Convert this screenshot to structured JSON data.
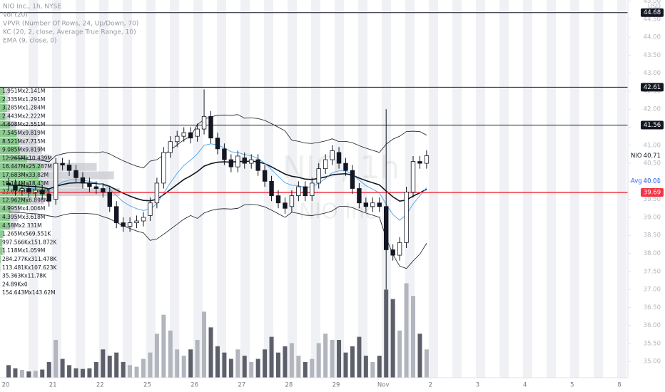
{
  "chart_data": {
    "type": "candlestick",
    "title": "NIO Inc., 1h, NYSE",
    "indicators": [
      "Vol (20)",
      "VPVR (Number Of Rows, 24, Up/Down, 70)",
      "KC (20, 2, close, Average True Range, 10)",
      "EMA (9, close, 0)"
    ],
    "watermark": [
      "NIO, 1h",
      "NIO Inc."
    ],
    "currency": "USD",
    "categories": [
      "20",
      null,
      null,
      null,
      null,
      null,
      null,
      "21",
      null,
      null,
      null,
      null,
      null,
      null,
      "22",
      null,
      null,
      null,
      null,
      null,
      null,
      "25",
      null,
      null,
      null,
      null,
      null,
      null,
      "26",
      null,
      null,
      null,
      null,
      null,
      null,
      "27",
      null,
      null,
      null,
      null,
      null,
      null,
      "28",
      null,
      null,
      null,
      null,
      null,
      null,
      "29",
      null,
      null,
      null,
      null,
      null,
      null,
      "Nov",
      null,
      null,
      null,
      null,
      null,
      null
    ],
    "future_categories": [
      "2",
      "3",
      "4",
      "5",
      "8"
    ],
    "open": [
      39.95,
      39.9,
      39.75,
      39.8,
      39.7,
      39.75,
      39.65,
      39.5,
      40.5,
      40.45,
      40.3,
      40.1,
      39.95,
      39.85,
      39.8,
      39.7,
      39.3,
      38.85,
      38.75,
      38.85,
      38.9,
      39.05,
      39.4,
      39.95,
      40.8,
      41.1,
      41.25,
      41.35,
      41.25,
      41.45,
      41.8,
      41.2,
      40.9,
      40.6,
      40.4,
      40.65,
      40.5,
      40.6,
      40.3,
      40.0,
      39.6,
      39.4,
      39.3,
      39.6,
      39.85,
      39.6,
      39.95,
      40.35,
      40.6,
      40.8,
      40.5,
      40.3,
      39.8,
      39.4,
      39.3,
      39.4,
      39.3,
      38.1,
      37.95,
      38.3,
      39.7,
      40.55,
      40.5
    ],
    "high": [
      40.1,
      40.05,
      39.95,
      39.95,
      39.9,
      39.9,
      39.8,
      40.65,
      40.65,
      40.6,
      40.45,
      40.25,
      40.1,
      40.0,
      39.95,
      39.85,
      39.45,
      39.0,
      39.0,
      39.05,
      39.15,
      39.55,
      40.1,
      40.95,
      41.25,
      41.4,
      41.5,
      41.5,
      41.6,
      42.55,
      41.95,
      41.35,
      41.05,
      40.75,
      40.85,
      40.8,
      40.75,
      40.75,
      40.45,
      40.15,
      39.75,
      39.55,
      39.75,
      40.0,
      40.0,
      40.1,
      40.5,
      40.75,
      41.0,
      40.95,
      40.65,
      40.45,
      39.95,
      39.55,
      39.55,
      39.55,
      42.0,
      38.25,
      38.45,
      39.85,
      40.7,
      40.7,
      40.86
    ],
    "low": [
      39.75,
      39.6,
      39.6,
      39.55,
      39.55,
      39.5,
      39.3,
      39.35,
      40.3,
      40.15,
      39.95,
      39.8,
      39.7,
      39.65,
      39.55,
      39.15,
      38.7,
      38.6,
      38.6,
      38.7,
      38.75,
      38.9,
      39.25,
      39.8,
      40.65,
      40.95,
      41.1,
      41.05,
      41.1,
      41.3,
      41.05,
      40.75,
      40.45,
      40.25,
      40.25,
      40.35,
      40.35,
      40.15,
      39.85,
      39.45,
      39.25,
      39.1,
      39.15,
      39.45,
      39.45,
      39.45,
      39.8,
      40.2,
      40.45,
      40.35,
      40.15,
      39.65,
      39.25,
      39.15,
      39.15,
      39.15,
      37.0,
      37.8,
      37.8,
      38.15,
      39.55,
      40.35,
      40.35
    ],
    "close": [
      39.9,
      39.75,
      39.8,
      39.7,
      39.75,
      39.65,
      39.45,
      40.5,
      40.45,
      40.3,
      40.1,
      39.95,
      39.85,
      39.8,
      39.7,
      39.3,
      38.85,
      38.75,
      38.85,
      38.9,
      39.0,
      39.4,
      39.95,
      40.8,
      41.1,
      41.25,
      41.35,
      41.2,
      41.45,
      41.8,
      41.2,
      40.9,
      40.6,
      40.4,
      40.7,
      40.5,
      40.6,
      40.3,
      40.0,
      39.6,
      39.4,
      39.25,
      39.6,
      39.85,
      39.6,
      39.95,
      40.35,
      40.6,
      40.85,
      40.5,
      40.3,
      39.8,
      39.4,
      39.3,
      39.4,
      39.3,
      38.1,
      37.95,
      38.3,
      39.7,
      40.55,
      40.5,
      40.71
    ],
    "volume": [
      400000,
      300000,
      250000,
      200000,
      220000,
      260000,
      500000,
      1200000,
      600000,
      400000,
      300000,
      280000,
      300000,
      500000,
      900000,
      700000,
      800000,
      500000,
      400000,
      350000,
      600000,
      800000,
      1400000,
      2000000,
      1500000,
      900000,
      700000,
      900000,
      1200000,
      2100000,
      1600000,
      1000000,
      800000,
      600000,
      900000,
      700000,
      500000,
      600000,
      900000,
      1300000,
      800000,
      1000000,
      1100000,
      700000,
      500000,
      600000,
      1100000,
      1400000,
      1200000,
      1200000,
      800000,
      1000000,
      1300000,
      700000,
      500000,
      700000,
      2800000,
      2500000,
      1500000,
      3000000,
      2600000,
      1400000,
      900000
    ],
    "overlays": [
      {
        "color": "#131722",
        "width": 1.6,
        "values": [
          39.9,
          39.89,
          39.88,
          39.86,
          39.85,
          39.83,
          39.79,
          39.86,
          39.91,
          39.95,
          39.96,
          39.96,
          39.95,
          39.94,
          39.92,
          39.86,
          39.76,
          39.67,
          39.59,
          39.52,
          39.47,
          39.46,
          39.5,
          39.63,
          39.77,
          39.91,
          40.05,
          40.15,
          40.27,
          40.42,
          40.49,
          40.53,
          40.54,
          40.53,
          40.55,
          40.55,
          40.56,
          40.54,
          40.49,
          40.4,
          40.3,
          40.2,
          40.14,
          40.11,
          40.06,
          40.05,
          40.08,
          40.12,
          40.18,
          40.2,
          40.21,
          40.17,
          40.09,
          40.02,
          39.96,
          39.9,
          39.73,
          39.57,
          39.45,
          39.48,
          39.59,
          39.68,
          39.78
        ]
      },
      {
        "color": "#131722",
        "width": 0.8,
        "values": [
          40.65,
          40.64,
          40.63,
          40.61,
          40.6,
          40.58,
          40.54,
          40.71,
          40.76,
          40.8,
          40.81,
          40.81,
          40.8,
          40.79,
          40.82,
          40.76,
          40.66,
          40.57,
          40.49,
          40.42,
          40.37,
          40.56,
          40.6,
          40.73,
          40.87,
          41.01,
          41.15,
          41.25,
          41.57,
          41.72,
          41.79,
          41.83,
          41.84,
          41.83,
          41.85,
          41.75,
          41.76,
          41.74,
          41.69,
          41.6,
          41.5,
          41.4,
          41.14,
          41.11,
          41.06,
          41.05,
          41.08,
          41.12,
          41.18,
          41.1,
          41.11,
          41.07,
          40.99,
          40.92,
          40.86,
          40.8,
          41.03,
          41.17,
          41.25,
          41.38,
          41.39,
          41.38,
          41.28
        ]
      },
      {
        "color": "#131722",
        "width": 0.8,
        "values": [
          39.15,
          39.14,
          39.13,
          39.11,
          39.1,
          39.08,
          39.04,
          39.01,
          39.06,
          39.1,
          39.11,
          39.11,
          39.1,
          39.09,
          39.02,
          38.96,
          38.86,
          38.77,
          38.69,
          38.62,
          38.57,
          38.36,
          38.4,
          38.53,
          38.67,
          38.81,
          38.95,
          39.05,
          38.97,
          39.12,
          39.19,
          39.23,
          39.24,
          39.23,
          39.25,
          39.35,
          39.36,
          39.34,
          39.29,
          39.2,
          39.1,
          39.0,
          39.14,
          39.11,
          39.06,
          39.05,
          39.08,
          39.12,
          39.18,
          39.3,
          39.31,
          39.27,
          39.19,
          39.12,
          39.06,
          39.0,
          38.43,
          37.97,
          37.65,
          37.58,
          37.79,
          37.98,
          38.28
        ]
      },
      {
        "color": "#42a5f5",
        "width": 0.9,
        "values": [
          39.85,
          39.83,
          39.82,
          39.8,
          39.79,
          39.76,
          39.7,
          39.86,
          39.98,
          40.04,
          40.05,
          40.03,
          40.0,
          39.96,
          39.91,
          39.79,
          39.6,
          39.43,
          39.32,
          39.24,
          39.19,
          39.23,
          39.38,
          39.67,
          39.96,
          40.22,
          40.44,
          40.59,
          40.76,
          41.0,
          41.04,
          41.01,
          40.93,
          40.82,
          40.8,
          40.74,
          40.71,
          40.63,
          40.5,
          40.32,
          40.14,
          39.96,
          39.89,
          39.88,
          39.82,
          39.85,
          39.95,
          40.08,
          40.24,
          40.29,
          40.29,
          40.19,
          40.03,
          39.88,
          39.78,
          39.68,
          39.36,
          39.08,
          38.92,
          39.08,
          39.37,
          39.6,
          39.82
        ]
      }
    ],
    "vpvr": [
      {
        "up": 1951000,
        "down": 2141000,
        "label": "1.951Mx2.141M"
      },
      {
        "up": 2335000,
        "down": 1291000,
        "label": "2.335Mx1.291M"
      },
      {
        "up": 3285000,
        "down": 1284000,
        "label": "3.285Mx1.284M"
      },
      {
        "up": 2443000,
        "down": 2222000,
        "label": "2.443Mx2.222M"
      },
      {
        "up": 4608000,
        "down": 2551000,
        "label": "4.608Mx2.551M"
      },
      {
        "up": 7545000,
        "down": 9819000,
        "label": "7.545Mx9.819M"
      },
      {
        "up": 8521000,
        "down": 7715000,
        "label": "8.521Mx7.715M"
      },
      {
        "up": 9085000,
        "down": 9819000,
        "label": "9.085Mx9.819M"
      },
      {
        "up": 12265000,
        "down": 10439000,
        "label": "12.265Mx10.439M"
      },
      {
        "up": 18447000,
        "down": 25287000,
        "label": "18.447Mx25.287M"
      },
      {
        "up": 17683000,
        "down": 33820000,
        "label": "17.683Mx33.82M"
      },
      {
        "up": 19104000,
        "down": 18430000,
        "label": "19.104Mx18.43M"
      },
      {
        "up": 22624000,
        "down": 31470000,
        "label": "22.624Mx31.47M"
      },
      {
        "up": 12962000,
        "down": 6898000,
        "label": "12.962Mx6.898M"
      },
      {
        "up": 4995000,
        "down": 4006000,
        "label": "4.995Mx4.006M"
      },
      {
        "up": 4395000,
        "down": 3618000,
        "label": "4.395Mx3.618M"
      },
      {
        "up": 4580000,
        "down": 2331000,
        "label": "4.58Mx2.331M"
      },
      {
        "up": 1265000,
        "down": 569551,
        "label": "1.265Mx569.551K"
      },
      {
        "up": 997566,
        "down": 151872,
        "label": "997.566Kx151.872K"
      },
      {
        "up": 1118000,
        "down": 1059000,
        "label": "1.118Mx1.059M"
      },
      {
        "up": 284277,
        "down": 311478,
        "label": "284.277Kx311.478K"
      },
      {
        "up": 113481,
        "down": 107623,
        "label": "113.481Kx107.623K"
      },
      {
        "up": 35363,
        "down": 11780,
        "label": "35.363Kx11.78K"
      },
      {
        "up": 24890,
        "down": 0,
        "label": "24.89Kx0"
      }
    ],
    "vpvr_total": {
      "up": 154643000,
      "down": 143620000,
      "label": "154.643Mx143.62M"
    },
    "levels": [
      44.68,
      42.61,
      41.56,
      39.69
    ],
    "level_colors": [
      "#131722",
      "#131722",
      "#131722",
      "#f23645"
    ],
    "last": {
      "label": "NIO",
      "value": 40.71
    },
    "avg": {
      "label": "Avg",
      "value": 40.01
    },
    "ylim": [
      34.55,
      45.03
    ],
    "yticks": [
      {
        "value": 35,
        "label": "35.00"
      },
      {
        "value": 35.5,
        "label": "35.50"
      },
      {
        "value": 36,
        "label": "36.00"
      },
      {
        "value": 36.5,
        "label": "36.50"
      },
      {
        "value": 37,
        "label": "37.00"
      },
      {
        "value": 37.5,
        "label": "37.50"
      },
      {
        "value": 38,
        "label": "38.00"
      },
      {
        "value": 38.5,
        "label": "38.50"
      },
      {
        "value": 39,
        "label": "39.00"
      },
      {
        "value": 39.5,
        "label": "39.50"
      },
      {
        "value": 40,
        "label": "40.00"
      },
      {
        "value": 40.5,
        "label": "40.50"
      },
      {
        "value": 41,
        "label": "41.00"
      },
      {
        "value": 41.5,
        "label": "41.50"
      },
      {
        "value": 42,
        "label": "42.00"
      },
      {
        "value": 42.5,
        "label": "42.50"
      },
      {
        "value": 43,
        "label": "43.00"
      },
      {
        "value": 43.5,
        "label": "43.50"
      },
      {
        "value": 44,
        "label": "44.00"
      },
      {
        "value": 44.5,
        "label": "44.50"
      },
      {
        "value": 45,
        "label": "45.00"
      }
    ],
    "y2lim": [
      0,
      12000000
    ],
    "colors": {
      "up_body": "#ffffff",
      "down_body": "#131722",
      "wick": "#131722",
      "up_volume": "#b2b5be",
      "down_volume": "#5d606b",
      "vpvr_up": "#66bb6a",
      "vpvr_down": "#c8cad0"
    }
  }
}
